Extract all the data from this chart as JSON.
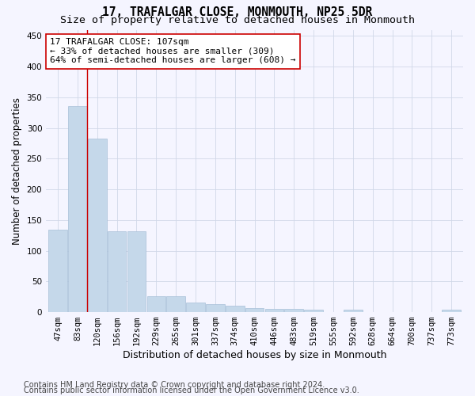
{
  "title": "17, TRAFALGAR CLOSE, MONMOUTH, NP25 5DR",
  "subtitle": "Size of property relative to detached houses in Monmouth",
  "xlabel": "Distribution of detached houses by size in Monmouth",
  "ylabel": "Number of detached properties",
  "categories": [
    "47sqm",
    "83sqm",
    "120sqm",
    "156sqm",
    "192sqm",
    "229sqm",
    "265sqm",
    "301sqm",
    "337sqm",
    "374sqm",
    "410sqm",
    "446sqm",
    "483sqm",
    "519sqm",
    "555sqm",
    "592sqm",
    "628sqm",
    "664sqm",
    "700sqm",
    "737sqm",
    "773sqm"
  ],
  "values": [
    134,
    336,
    282,
    132,
    132,
    26,
    26,
    15,
    13,
    10,
    7,
    5,
    5,
    4,
    0,
    4,
    0,
    0,
    0,
    0,
    4
  ],
  "bar_color": "#c5d8ea",
  "bar_edge_color": "#a8c0d8",
  "vline_x": 1.5,
  "vline_color": "#cc0000",
  "ylim": [
    0,
    460
  ],
  "yticks": [
    0,
    50,
    100,
    150,
    200,
    250,
    300,
    350,
    400,
    450
  ],
  "annotation_line1": "17 TRAFALGAR CLOSE: 107sqm",
  "annotation_line2": "← 33% of detached houses are smaller (309)",
  "annotation_line3": "64% of semi-detached houses are larger (608) →",
  "annotation_box_color": "#ffffff",
  "annotation_box_edge": "#cc0000",
  "footer1": "Contains HM Land Registry data © Crown copyright and database right 2024.",
  "footer2": "Contains public sector information licensed under the Open Government Licence v3.0.",
  "title_fontsize": 10.5,
  "subtitle_fontsize": 9.5,
  "xlabel_fontsize": 9,
  "ylabel_fontsize": 8.5,
  "tick_fontsize": 7.5,
  "annotation_fontsize": 8,
  "footer_fontsize": 7,
  "background_color": "#f5f5ff",
  "grid_color": "#d0d8e8"
}
